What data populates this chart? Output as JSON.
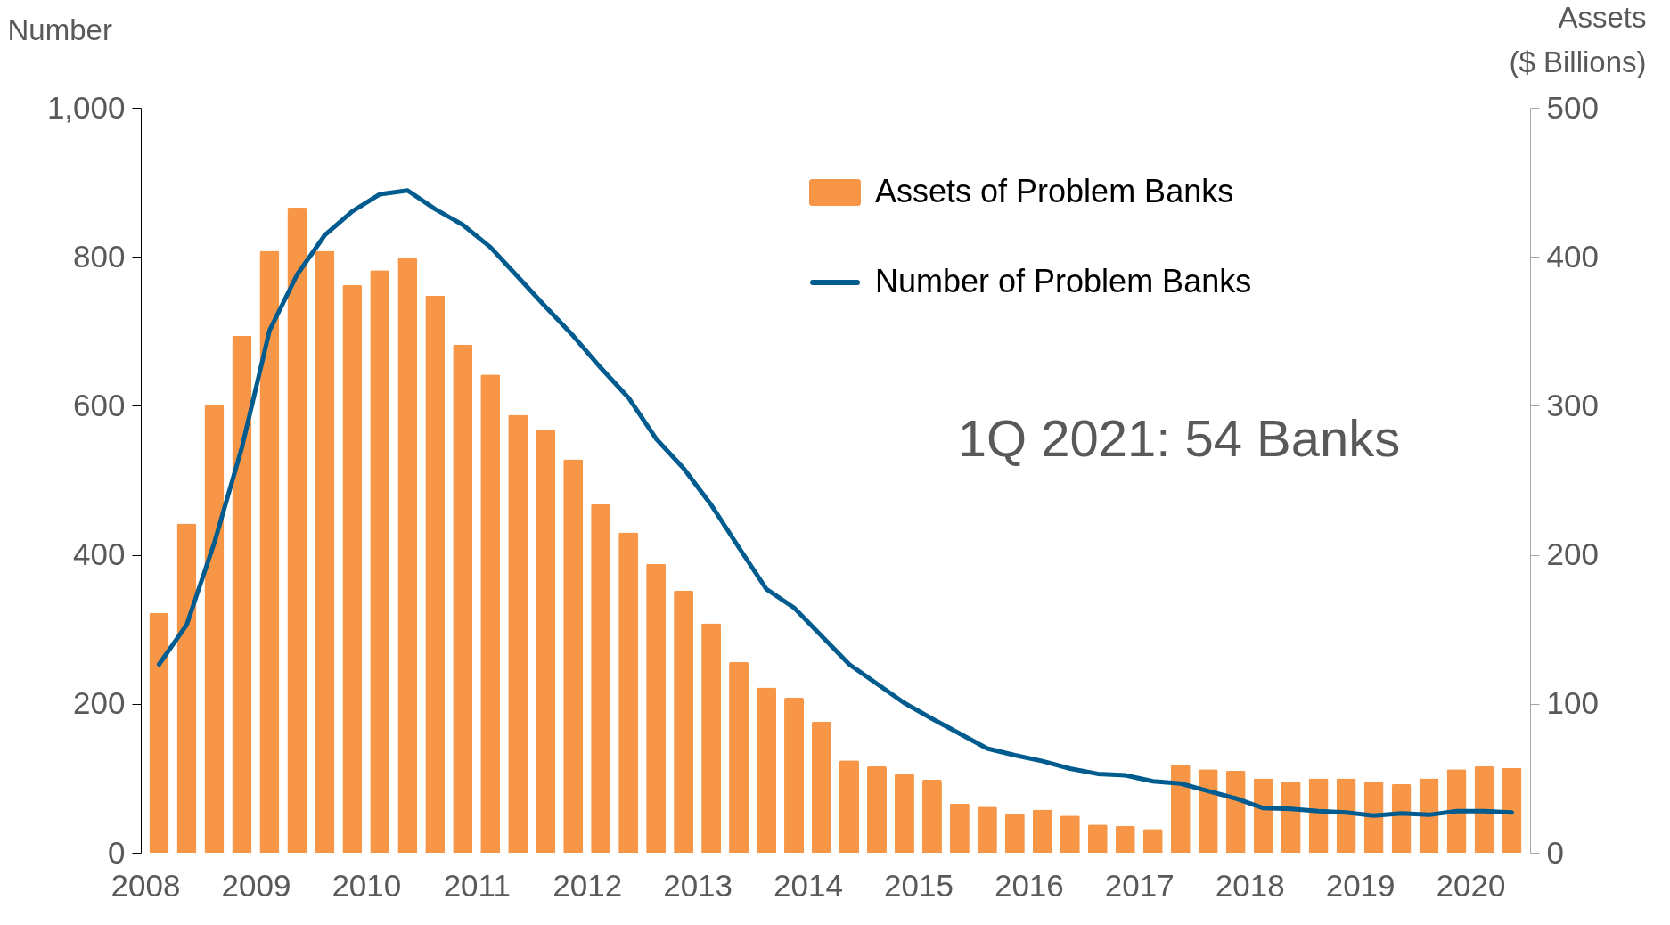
{
  "chart_data": {
    "type": "bar",
    "ylabel": "Number",
    "y2label": "Assets\n($ Billions)",
    "annotations": [
      "1Q 2021: 54 Banks"
    ],
    "x": [
      2008.125,
      2008.375,
      2008.625,
      2008.875,
      2009.125,
      2009.375,
      2009.625,
      2009.875,
      2010.125,
      2010.375,
      2010.625,
      2010.875,
      2011.125,
      2011.375,
      2011.625,
      2011.875,
      2012.125,
      2012.375,
      2012.625,
      2012.875,
      2013.125,
      2013.375,
      2013.625,
      2013.875,
      2014.125,
      2014.375,
      2014.625,
      2014.875,
      2015.125,
      2015.375,
      2015.625,
      2015.875,
      2016.125,
      2016.375,
      2016.625,
      2016.875,
      2017.125,
      2017.375,
      2017.625,
      2017.875,
      2018.125,
      2018.375,
      2018.625,
      2018.875,
      2019.125,
      2019.375,
      2019.625,
      2019.875,
      2020.125,
      2020.375
    ],
    "series": [
      {
        "name": "Assets of Problem Banks",
        "axis": "y2",
        "color": "#f79646",
        "values": [
          161,
          221,
          301,
          347,
          404,
          433,
          404,
          381,
          391,
          399,
          374,
          341,
          321,
          294,
          284,
          264,
          234,
          215,
          194,
          176,
          154,
          128,
          111,
          104,
          88,
          62,
          58,
          53,
          49,
          33,
          31,
          26,
          29,
          25,
          19,
          18,
          16,
          59,
          56,
          55,
          50,
          48,
          50,
          50,
          48,
          46,
          50,
          56,
          58,
          57
        ]
      },
      {
        "name": "Number of Problem Banks",
        "type": "line",
        "color": "#005b8e",
        "values": [
          253,
          306,
          416,
          544,
          701,
          776,
          829,
          861,
          884,
          889,
          864,
          843,
          813,
          773,
          733,
          694,
          651,
          611,
          556,
          516,
          467,
          410,
          354,
          329,
          291,
          253,
          227,
          201,
          180,
          160,
          140,
          131,
          123,
          113,
          106,
          104,
          96,
          93,
          83,
          73,
          60,
          59,
          56,
          54,
          50,
          53,
          51,
          56,
          56,
          54
        ]
      }
    ],
    "xlim": [
      2008,
      2020.5
    ],
    "xticks": [
      2008,
      2009,
      2010,
      2011,
      2012,
      2013,
      2014,
      2015,
      2016,
      2017,
      2018,
      2019,
      2020
    ],
    "ylim": [
      0,
      1000
    ],
    "yticks": [
      0,
      200,
      400,
      600,
      800,
      {
        "value": 1000,
        "label": "1,000"
      }
    ],
    "y2lim": [
      0,
      500
    ],
    "y2ticks": [
      0,
      100,
      200,
      300,
      400,
      500
    ],
    "grid": false,
    "legend": "top right"
  }
}
